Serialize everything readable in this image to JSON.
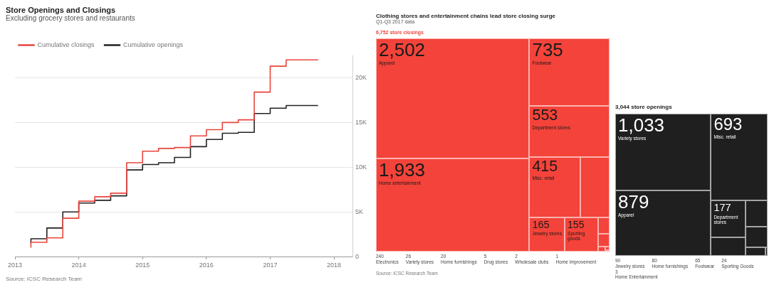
{
  "chart_data": [
    {
      "type": "step",
      "title": "Store Openings and Closings",
      "subtitle": "Excluding grocery stores and restaurants",
      "x": [
        2013.25,
        2013.5,
        2013.75,
        2014,
        2014.25,
        2014.5,
        2014.75,
        2015,
        2015.25,
        2015.5,
        2015.75,
        2016,
        2016.25,
        2016.5,
        2016.75,
        2017,
        2017.25,
        2017.5,
        2017.75
      ],
      "series": [
        {
          "name": "Cumulative closings",
          "color": "#e8453c",
          "values": [
            1000,
            1600,
            2100,
            4300,
            6200,
            6700,
            7100,
            10500,
            11800,
            12100,
            12200,
            13500,
            14200,
            15000,
            15300,
            18400,
            21300,
            22000,
            22000
          ]
        },
        {
          "name": "Cumulative openings",
          "color": "#222222",
          "values": [
            1550,
            2000,
            3200,
            5000,
            6000,
            6300,
            6800,
            9700,
            10300,
            10500,
            11100,
            12300,
            13100,
            13800,
            13900,
            16000,
            16600,
            16900,
            16900
          ]
        }
      ],
      "xlim": [
        2013,
        2018.3
      ],
      "xticks": [
        2013,
        2014,
        2015,
        2016,
        2017,
        2018
      ],
      "ylim": [
        0,
        22500
      ],
      "yticks": [
        0,
        {
          "value": 5000,
          "label": "5K"
        },
        {
          "value": 10000,
          "label": "10K"
        },
        {
          "value": 15000,
          "label": "15K"
        },
        {
          "value": 20000,
          "label": "20K"
        }
      ],
      "grid": "y",
      "legend": "top left",
      "annotations": [
        "Source: ICSC Research Team"
      ]
    },
    {
      "type": "other",
      "title": "Clothing stores and entertainment chains lead store closing surge",
      "subtitle": "Q1-Q3 2017 data",
      "categories": [
        "Apparel",
        "Home entertainment",
        "Footwear",
        "Department stores",
        "Misc. retail",
        "Electronics",
        "Jewelry stores",
        "Sporting goods",
        "Variety stores",
        "Home furnishings",
        "Drug stores",
        "Wholesale clubs",
        "Home improvement"
      ],
      "values": [
        2502,
        1933,
        735,
        553,
        415,
        240,
        165,
        155,
        26,
        20,
        5,
        2,
        1
      ],
      "value_labels": [
        "2,502",
        "1,933",
        "735",
        "553",
        "415",
        "240",
        "165",
        "155",
        "26",
        "20",
        "5",
        "2",
        "1"
      ],
      "color": "#f4433a",
      "annotations": [
        "6,752 store closings",
        "Source: ICSC Research Team"
      ]
    },
    {
      "type": "other",
      "title": "3,044 store openings",
      "categories": [
        "Variety stores",
        "Apparel",
        "Misc. retail",
        "Department stores",
        "Jewelry stores",
        "Home furnishings",
        "Footwear",
        "Sporting Goods",
        "Home Entertainment"
      ],
      "values": [
        1033,
        879,
        693,
        177,
        90,
        80,
        65,
        24,
        3
      ],
      "value_labels": [
        "1,033",
        "879",
        "693",
        "177",
        "90",
        "80",
        "65",
        "24",
        "3"
      ],
      "color": "#1f1f1f"
    }
  ]
}
